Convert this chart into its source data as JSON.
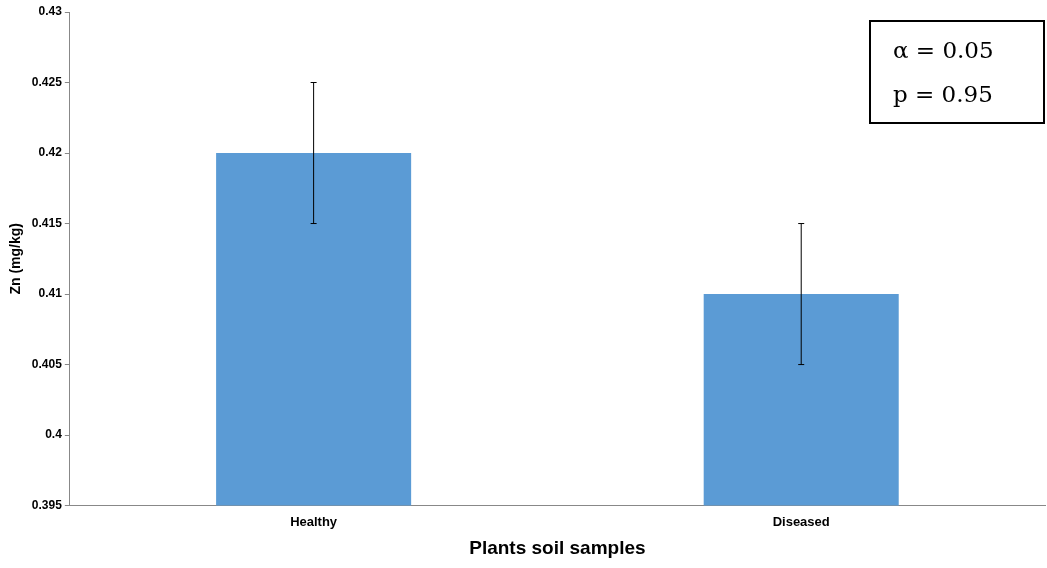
{
  "chart_data": {
    "type": "bar",
    "xlabel": "Plants soil samples",
    "ylabel": "Zn (mg/kg)",
    "categories": [
      "Healthy",
      "Diseased"
    ],
    "values": [
      0.42,
      0.41
    ],
    "errors": [
      0.005,
      0.005
    ],
    "color": "#5b9bd5",
    "ylim": [
      0.395,
      0.43
    ],
    "yticks": [
      0.395,
      0.4,
      0.405,
      0.41,
      0.415,
      0.42,
      0.425,
      0.43
    ],
    "grid": false,
    "legend": false,
    "annotations": [
      "α = 0.05",
      "p = 0.95"
    ]
  }
}
